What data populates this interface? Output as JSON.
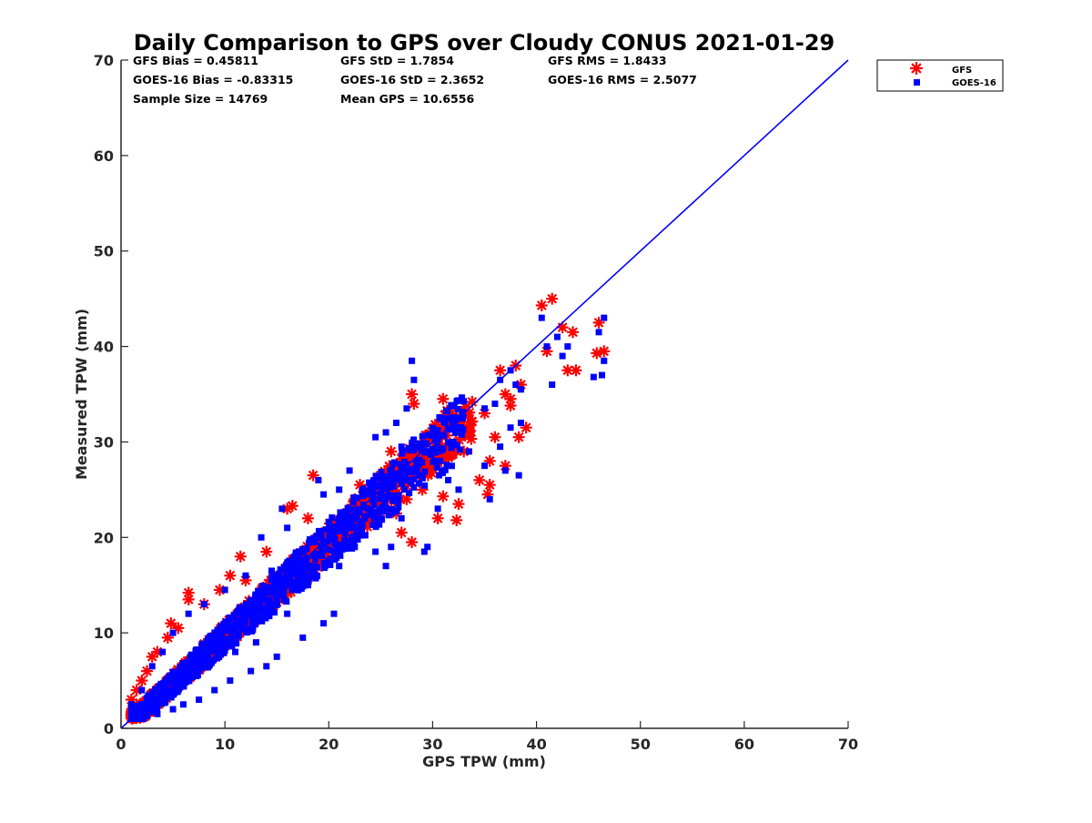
{
  "chart_data": {
    "type": "scatter",
    "title": "Daily Comparison to GPS over Cloudy CONUS 2021-01-29",
    "xlabel": "GPS TPW (mm)",
    "ylabel": "Measured TPW (mm)",
    "xlim": [
      0,
      70
    ],
    "ylim": [
      0,
      70
    ],
    "xticks": [
      "0",
      "10",
      "20",
      "30",
      "40",
      "50",
      "60",
      "70"
    ],
    "yticks": [
      "0",
      "10",
      "20",
      "30",
      "40",
      "50",
      "60",
      "70"
    ],
    "grid": false,
    "legend_position": "outside-top-right",
    "reference_line": {
      "x": [
        0,
        70
      ],
      "y": [
        0,
        70
      ],
      "color": "#0000ff"
    },
    "stats": [
      [
        "GFS Bias = 0.45811",
        "GFS StD = 1.7854",
        "GFS RMS = 1.8433"
      ],
      [
        "GOES-16 Bias = -0.83315",
        "GOES-16 StD = 2.3652",
        "GOES-16 RMS = 2.5077"
      ],
      [
        "Sample Size = 14769",
        "Mean GPS = 10.6556",
        ""
      ]
    ],
    "series": [
      {
        "name": "GFS",
        "marker": "asterisk",
        "color": "#ff0000",
        "points": [
          [
            41.5,
            45.0
          ],
          [
            40.5,
            44.3
          ],
          [
            42.5,
            42.0
          ],
          [
            46.0,
            42.5
          ],
          [
            46.5,
            39.5
          ],
          [
            45.8,
            39.3
          ],
          [
            41.0,
            39.5
          ],
          [
            43.5,
            41.5
          ],
          [
            43.0,
            37.5
          ],
          [
            43.8,
            37.5
          ],
          [
            38.0,
            38.0
          ],
          [
            36.5,
            37.5
          ],
          [
            37.5,
            34.5
          ],
          [
            37.0,
            35.0
          ],
          [
            38.5,
            36.0
          ],
          [
            37.5,
            33.8
          ],
          [
            38.3,
            30.5
          ],
          [
            35.5,
            28.0
          ],
          [
            35.3,
            24.5
          ],
          [
            35.5,
            25.5
          ],
          [
            33.0,
            29.0
          ],
          [
            32.5,
            23.5
          ],
          [
            32.3,
            21.8
          ],
          [
            31.0,
            24.3
          ],
          [
            30.5,
            22.0
          ],
          [
            31.0,
            34.5
          ],
          [
            28.0,
            35.0
          ],
          [
            28.2,
            34.0
          ],
          [
            28.0,
            19.5
          ],
          [
            27.0,
            20.5
          ],
          [
            26.5,
            22.5
          ],
          [
            26.0,
            23.0
          ],
          [
            27.5,
            24.0
          ],
          [
            29.0,
            25.0
          ],
          [
            24.5,
            22.0
          ],
          [
            25.0,
            26.5
          ],
          [
            26.0,
            29.0
          ],
          [
            23.0,
            25.5
          ],
          [
            21.0,
            21.5
          ],
          [
            22.5,
            24.0
          ],
          [
            18.5,
            26.5
          ],
          [
            16.5,
            23.3
          ],
          [
            16.0,
            23.0
          ],
          [
            18.0,
            22.0
          ],
          [
            14.0,
            18.5
          ],
          [
            11.5,
            18.0
          ],
          [
            10.5,
            16.0
          ],
          [
            12.0,
            15.5
          ],
          [
            9.5,
            14.5
          ],
          [
            8.0,
            13.0
          ],
          [
            6.5,
            14.2
          ],
          [
            6.5,
            13.5
          ],
          [
            4.8,
            11.0
          ],
          [
            5.5,
            10.5
          ],
          [
            4.5,
            9.5
          ],
          [
            3.5,
            8.0
          ],
          [
            3.0,
            7.5
          ],
          [
            2.5,
            6.0
          ],
          [
            2.0,
            5.0
          ],
          [
            1.5,
            4.0
          ],
          [
            1.0,
            3.0
          ],
          [
            1.5,
            2.5
          ],
          [
            3.0,
            3.0
          ],
          [
            4.0,
            4.0
          ],
          [
            6.0,
            5.5
          ],
          [
            8.0,
            7.0
          ],
          [
            10.0,
            9.5
          ],
          [
            12.0,
            11.0
          ],
          [
            14.0,
            13.0
          ],
          [
            20.0,
            19.0
          ],
          [
            22.0,
            21.0
          ],
          [
            24.0,
            23.5
          ],
          [
            26.0,
            26.0
          ],
          [
            28.0,
            28.5
          ],
          [
            30.0,
            30.0
          ],
          [
            29.5,
            27.0
          ],
          [
            31.5,
            29.5
          ],
          [
            33.5,
            31.0
          ],
          [
            34.5,
            26.0
          ],
          [
            36.0,
            30.5
          ],
          [
            37.0,
            27.5
          ],
          [
            39.0,
            31.5
          ],
          [
            35.0,
            33.0
          ]
        ],
        "cloud": {
          "x": [
            1,
            34
          ],
          "spread_above": 2.0,
          "spread_below": 3.5,
          "count": 900
        }
      },
      {
        "name": "GOES-16",
        "marker": "square",
        "color": "#0000ff",
        "points": [
          [
            46.5,
            43.0
          ],
          [
            46.0,
            41.5
          ],
          [
            46.5,
            38.5
          ],
          [
            45.5,
            36.8
          ],
          [
            46.3,
            37.0
          ],
          [
            40.5,
            43.0
          ],
          [
            41.0,
            40.0
          ],
          [
            42.0,
            41.0
          ],
          [
            42.5,
            39.0
          ],
          [
            43.0,
            40.0
          ],
          [
            41.5,
            36.0
          ],
          [
            37.5,
            37.5
          ],
          [
            38.0,
            36.0
          ],
          [
            38.5,
            35.5
          ],
          [
            36.0,
            34.0
          ],
          [
            36.5,
            36.5
          ],
          [
            38.3,
            26.5
          ],
          [
            37.0,
            27.0
          ],
          [
            35.5,
            24.0
          ],
          [
            35.0,
            27.5
          ],
          [
            36.5,
            29.5
          ],
          [
            37.5,
            31.5
          ],
          [
            38.5,
            32.0
          ],
          [
            35.0,
            33.5
          ],
          [
            28.0,
            38.5
          ],
          [
            28.2,
            36.5
          ],
          [
            27.5,
            33.5
          ],
          [
            29.5,
            19.0
          ],
          [
            29.2,
            18.5
          ],
          [
            25.5,
            17.0
          ],
          [
            24.5,
            18.5
          ],
          [
            26.0,
            19.0
          ],
          [
            27.0,
            22.0
          ],
          [
            25.5,
            31.0
          ],
          [
            26.5,
            32.0
          ],
          [
            19.0,
            26.0
          ],
          [
            19.5,
            24.5
          ],
          [
            15.5,
            23.0
          ],
          [
            16.0,
            21.0
          ],
          [
            13.5,
            20.0
          ],
          [
            14.5,
            16.5
          ],
          [
            20.5,
            12.0
          ],
          [
            19.5,
            11.0
          ],
          [
            17.5,
            9.5
          ],
          [
            15.0,
            7.5
          ],
          [
            14.0,
            6.5
          ],
          [
            12.5,
            6.0
          ],
          [
            10.5,
            5.0
          ],
          [
            9.0,
            4.0
          ],
          [
            7.5,
            3.0
          ],
          [
            6.0,
            2.5
          ],
          [
            5.0,
            2.0
          ],
          [
            3.5,
            1.5
          ],
          [
            2.5,
            1.5
          ],
          [
            1.5,
            1.8
          ],
          [
            1.0,
            2.5
          ],
          [
            2.0,
            4.0
          ],
          [
            3.0,
            6.5
          ],
          [
            4.0,
            8.0
          ],
          [
            5.0,
            10.0
          ],
          [
            6.5,
            12.0
          ],
          [
            8.0,
            13.0
          ],
          [
            10.0,
            14.5
          ],
          [
            12.0,
            16.0
          ],
          [
            30.0,
            29.0
          ],
          [
            32.0,
            31.5
          ],
          [
            33.5,
            29.0
          ],
          [
            31.5,
            26.0
          ],
          [
            32.5,
            25.0
          ],
          [
            30.5,
            23.0
          ],
          [
            28.5,
            27.0
          ],
          [
            27.0,
            29.5
          ],
          [
            24.5,
            30.5
          ],
          [
            22.0,
            27.0
          ],
          [
            21.0,
            25.0
          ],
          [
            23.5,
            22.0
          ],
          [
            22.5,
            19.0
          ],
          [
            21.0,
            17.0
          ],
          [
            18.0,
            15.0
          ],
          [
            16.0,
            12.0
          ],
          [
            13.0,
            9.0
          ],
          [
            11.0,
            8.0
          ]
        ],
        "cloud": {
          "x": [
            1,
            33
          ],
          "spread_above": 2.5,
          "spread_below": 4.5,
          "count": 1100
        }
      }
    ]
  }
}
